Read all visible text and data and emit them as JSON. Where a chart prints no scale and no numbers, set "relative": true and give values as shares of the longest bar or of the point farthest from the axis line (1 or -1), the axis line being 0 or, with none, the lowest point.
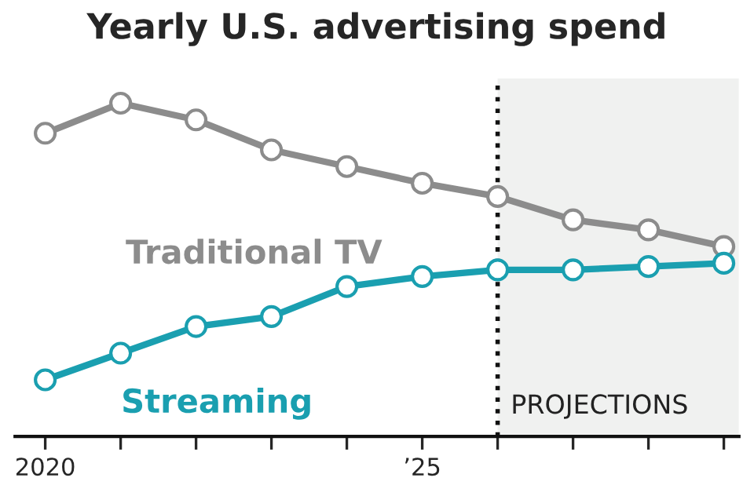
{
  "chart_data": {
    "type": "line",
    "title": "Yearly U.S. advertising spend",
    "relative": true,
    "x": [
      2020,
      2021,
      2022,
      2023,
      2024,
      2025,
      2026,
      2027,
      2028,
      2029
    ],
    "xlim": [
      2019.6,
      2029.2
    ],
    "xticks": [
      {
        "value": 2020,
        "label": "2020"
      },
      {
        "value": 2021,
        "label": null
      },
      {
        "value": 2022,
        "label": null
      },
      {
        "value": 2023,
        "label": null
      },
      {
        "value": 2024,
        "label": null
      },
      {
        "value": 2025,
        "label": "’25"
      },
      {
        "value": 2026,
        "label": null
      },
      {
        "value": 2027,
        "label": null
      },
      {
        "value": 2028,
        "label": null
      },
      {
        "value": 2029,
        "label": null
      }
    ],
    "series": [
      {
        "name": "Traditional TV",
        "color": "#8c8c8c",
        "values": [
          0.91,
          1,
          0.95,
          0.86,
          0.81,
          0.76,
          0.72,
          0.65,
          0.62,
          0.57
        ]
      },
      {
        "name": "Streaming",
        "color": "#1a9fb0",
        "values": [
          0.17,
          0.25,
          0.33,
          0.36,
          0.45,
          0.48,
          0.5,
          0.5,
          0.51,
          0.52
        ]
      }
    ],
    "bands": [
      {
        "axis": "x",
        "from": 2026,
        "to": 2029.2,
        "label": "PROJECTIONS",
        "color": "#f0f1f0"
      }
    ],
    "ref_lines": [
      {
        "axis": "x",
        "value": 2026,
        "label": null,
        "color": "#111111",
        "line_style": "dotted"
      }
    ],
    "marker": "circle",
    "line_style": "solid",
    "grid": false,
    "legend": false
  }
}
